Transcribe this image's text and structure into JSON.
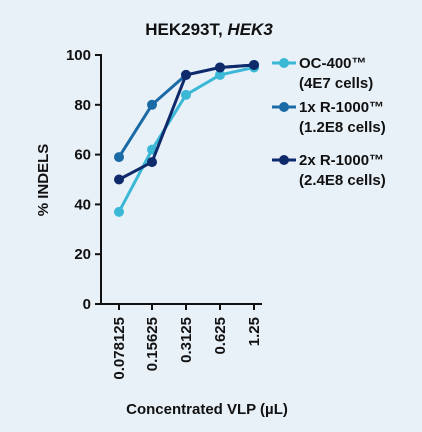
{
  "chart_data": {
    "type": "line",
    "title_main": "HEK293T, ",
    "title_italic": "HEK3",
    "xlabel": "Concentrated VLP (µL)",
    "ylabel": "% INDELS",
    "categories": [
      "0.078125",
      "0.15625",
      "0.3125",
      "0.625",
      "1.25"
    ],
    "ylim": [
      0,
      100
    ],
    "yticks": [
      0,
      20,
      40,
      60,
      80,
      100
    ],
    "legend_position": "right",
    "series": [
      {
        "name_line1": "OC-400™",
        "name_line2": "(4E7 cells)",
        "color": "#3bb8d6",
        "values": [
          37,
          62,
          84,
          92,
          95
        ]
      },
      {
        "name_line1": "1x R-1000™",
        "name_line2": "(1.2E8 cells)",
        "color": "#1a6aa6",
        "values": [
          59,
          80,
          92,
          95,
          96
        ]
      },
      {
        "name_line1": "2x R-1000™",
        "name_line2": "(2.4E8 cells)",
        "color": "#0f2a6b",
        "values": [
          50,
          57,
          92,
          95,
          96
        ]
      }
    ]
  }
}
